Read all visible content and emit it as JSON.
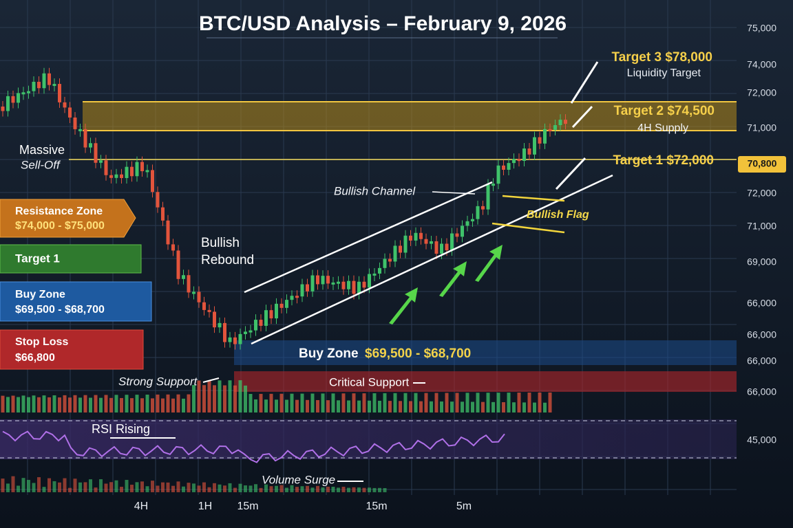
{
  "title": "BTC/USD Analysis – February 9, 2026",
  "price_labels": [
    "75,000",
    "74,000",
    "72,000",
    "71,000",
    "72,000",
    "71,000",
    "69,000",
    "66,000",
    "66,000",
    "66,000",
    "66,000",
    "45,000"
  ],
  "current_price": "70,800",
  "targets": [
    {
      "label": "Target 3 $78,000",
      "note": "Liquidity Target"
    },
    {
      "label": "Target 2 $74,500",
      "note": "4H Supply"
    },
    {
      "label": "Target 1 $72,000"
    }
  ],
  "side_panels": [
    {
      "title": "Resistance Zone",
      "range": "$74,000 - $75,000"
    },
    {
      "title": "Target 1"
    },
    {
      "title": "Buy Zone",
      "range": "$69,500 - $68,700"
    },
    {
      "title": "Stop Loss",
      "range": "$66,800"
    }
  ],
  "annotations": {
    "sell_off": [
      "Massive",
      "Sell-Off"
    ],
    "rebound": [
      "Bullish",
      "Rebound"
    ],
    "channel": "Bullish Channel",
    "flag": "Bullish Flag",
    "strong_support": "Strong Support",
    "critical_support": "Critical Support",
    "rsi": "RSI Rising",
    "volume": "Volume Surge"
  },
  "buy_zone": {
    "label": "Buy Zone",
    "range": "$69,500 - $68,700"
  },
  "timeframes": [
    "4H",
    "1H",
    "15m",
    "15m",
    "5m"
  ]
}
